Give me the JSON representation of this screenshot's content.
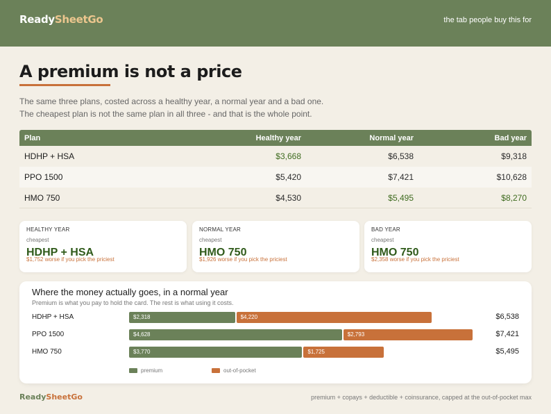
{
  "header": {
    "brand_a": "Ready",
    "brand_b": "SheetGo",
    "tagline": "the tab people buy this for"
  },
  "title": "A premium is not a price",
  "subtitle_lines": [
    "The same three plans, costed across a healthy year, a normal year and a bad one.",
    "The cheapest plan is not the same plan in all three - and that is the whole point."
  ],
  "table": {
    "headers": [
      "Plan",
      "Healthy year",
      "Normal year",
      "Bad year"
    ],
    "rows": [
      {
        "plan": "HDHP + HSA",
        "healthy": "$3,668",
        "normal": "$6,538",
        "bad": "$9,318"
      },
      {
        "plan": "PPO 1500",
        "healthy": "$5,420",
        "normal": "$7,421",
        "bad": "$10,628"
      },
      {
        "plan": "HMO 750",
        "healthy": "$4,530",
        "normal": "$5,495",
        "bad": "$8,270"
      }
    ],
    "best": {
      "healthy": 0,
      "normal": 2,
      "bad": 2
    },
    "best_color": "#3e6b1f"
  },
  "cards": [
    {
      "label": "HEALTHY YEAR",
      "small": "cheapest",
      "plan": "HDHP + HSA",
      "worse": "$1,752 worse if you pick the priciest"
    },
    {
      "label": "NORMAL YEAR",
      "small": "cheapest",
      "plan": "HMO 750",
      "worse": "$1,926 worse if you pick the priciest"
    },
    {
      "label": "BAD YEAR",
      "small": "cheapest",
      "plan": "HMO 750",
      "worse": "$2,358 worse if you pick the priciest"
    }
  ],
  "money_panel": {
    "title": "Where the money actually goes, in a normal year",
    "subtitle": "Premium is what you pay to hold the card. The rest is what using it costs.",
    "legend": {
      "premium": "premium",
      "oop": "out-of-pocket"
    }
  },
  "chart_data": {
    "type": "bar",
    "orientation": "horizontal",
    "stacked": true,
    "categories": [
      "HDHP + HSA",
      "PPO 1500",
      "HMO 750"
    ],
    "series": [
      {
        "name": "premium",
        "values": [
          2318,
          4628,
          3770
        ],
        "labels": [
          "$2,318",
          "$4,628",
          "$3,770"
        ],
        "color": "#6b8159"
      },
      {
        "name": "out-of-pocket",
        "values": [
          4220,
          2793,
          1725
        ],
        "labels": [
          "$4,220",
          "$2,793",
          "$1,725"
        ],
        "color": "#c8713a"
      }
    ],
    "totals": [
      "$6,538",
      "$7,421",
      "$5,495"
    ],
    "xlim": [
      0,
      7421
    ],
    "legend_position": "bottom-left"
  },
  "footer": {
    "brand_a": "Ready",
    "brand_b": "SheetGo",
    "note": "premium + copays + deductible + coinsurance, capped at the out-of-pocket max"
  }
}
